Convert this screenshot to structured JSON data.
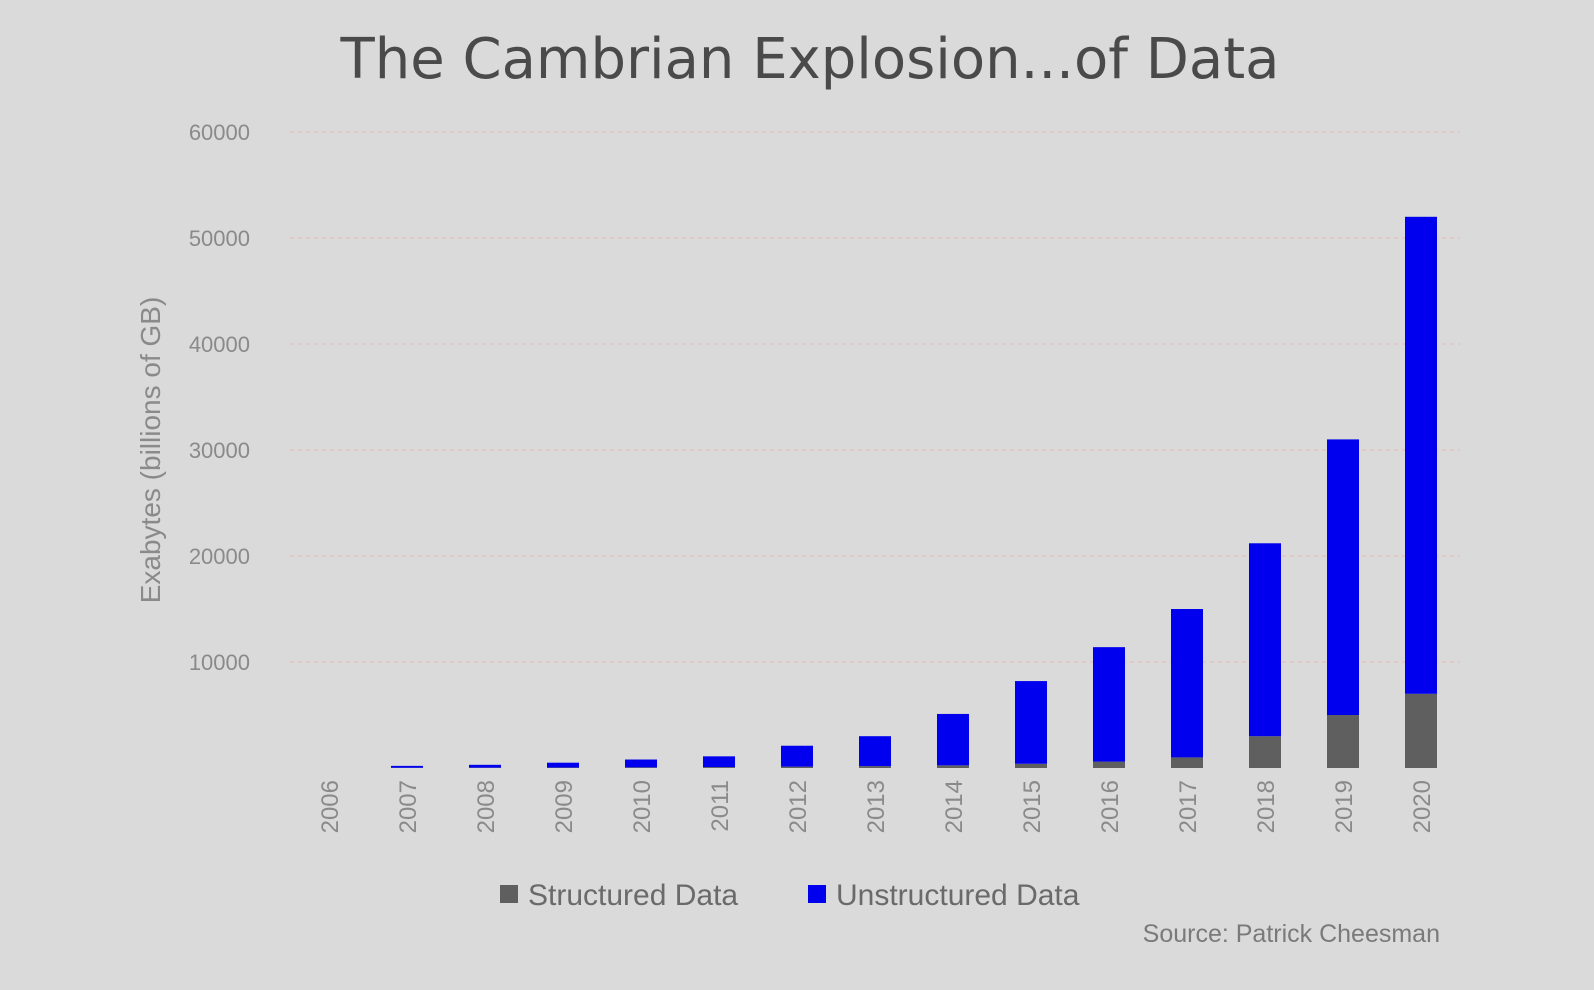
{
  "chart_data": {
    "type": "bar",
    "stacked": true,
    "title": "The Cambrian Explosion...of Data",
    "ylabel": "Exabytes (billions of GB)",
    "xlabel": "",
    "ylim": [
      0,
      60000
    ],
    "yticks": [
      10000,
      20000,
      30000,
      40000,
      50000,
      60000
    ],
    "grid": true,
    "legend_position": "bottom",
    "categories": [
      "2006",
      "2007",
      "2008",
      "2009",
      "2010",
      "2011",
      "2012",
      "2013",
      "2014",
      "2015",
      "2016",
      "2017",
      "2018",
      "2019",
      "2020"
    ],
    "series": [
      {
        "name": "Structured Data",
        "color": "#5f5f5f",
        "values": [
          0,
          20,
          30,
          40,
          60,
          90,
          130,
          180,
          250,
          400,
          600,
          1000,
          3000,
          5000,
          7000
        ]
      },
      {
        "name": "Unstructured Data",
        "color": "#0000ee",
        "values": [
          0,
          180,
          270,
          460,
          740,
          1010,
          1970,
          2820,
          4850,
          7800,
          10800,
          14000,
          18200,
          26000,
          45000
        ]
      }
    ],
    "source": "Source: Patrick Cheesman"
  }
}
